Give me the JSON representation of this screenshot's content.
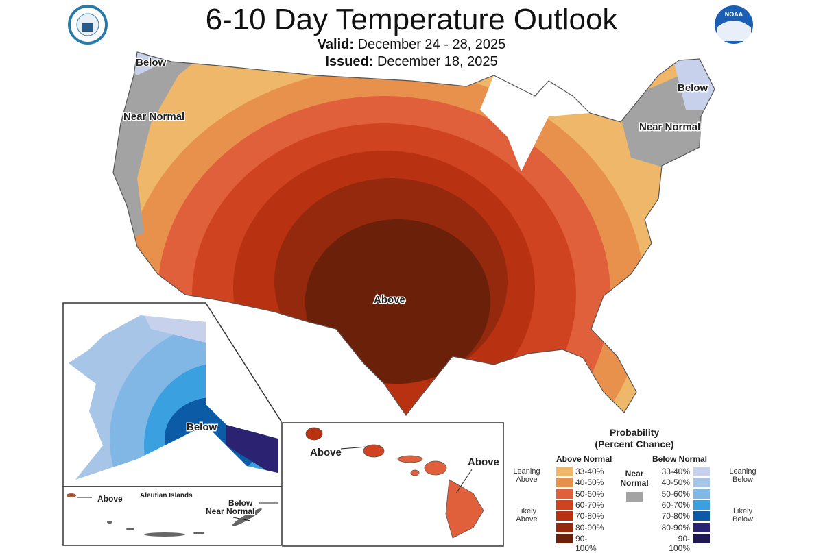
{
  "header": {
    "title": "6-10 Day Temperature Outlook",
    "valid_label": "Valid:",
    "valid_value": "December 24 - 28, 2025",
    "issued_label": "Issued:",
    "issued_value": "December 18, 2025"
  },
  "logos": {
    "left": "Department of Commerce seal",
    "right": "NOAA"
  },
  "map_labels": {
    "conus_above": "Above",
    "conus_nw_below": "Below",
    "conus_west_near": "Near Normal",
    "ne_below": "Below",
    "ne_near": "Near Normal",
    "alaska_below": "Below",
    "hawaii_above_1": "Above",
    "hawaii_above_2": "Above",
    "aleutian_title": "Aleutian Islands",
    "aleutian_above": "Above",
    "aleutian_below": "Below",
    "aleutian_near": "Near Normal"
  },
  "legend": {
    "title_1": "Probability",
    "title_2": "(Percent Chance)",
    "above_header": "Above Normal",
    "below_header": "Below Normal",
    "near_label": "Near Normal",
    "near_color": "#a3a3a3",
    "leaning_above": "Leaning Above",
    "likely_above": "Likely Above",
    "leaning_below": "Leaning Below",
    "likely_below": "Likely Below",
    "above": [
      {
        "range": "33-40%",
        "color": "#efb769"
      },
      {
        "range": "40-50%",
        "color": "#e8914c"
      },
      {
        "range": "50-60%",
        "color": "#e0603b"
      },
      {
        "range": "60-70%",
        "color": "#cf4321"
      },
      {
        "range": "70-80%",
        "color": "#b83212"
      },
      {
        "range": "80-90%",
        "color": "#94290d"
      },
      {
        "range": "90-100%",
        "color": "#6b2009"
      }
    ],
    "below": [
      {
        "range": "33-40%",
        "color": "#c7d1ec"
      },
      {
        "range": "40-50%",
        "color": "#a7c5e7"
      },
      {
        "range": "50-60%",
        "color": "#80b7e4"
      },
      {
        "range": "60-70%",
        "color": "#3aa0df"
      },
      {
        "range": "70-80%",
        "color": "#0b5ba6"
      },
      {
        "range": "80-90%",
        "color": "#2b2272"
      },
      {
        "range": "90-100%",
        "color": "#1f1852"
      }
    ]
  }
}
